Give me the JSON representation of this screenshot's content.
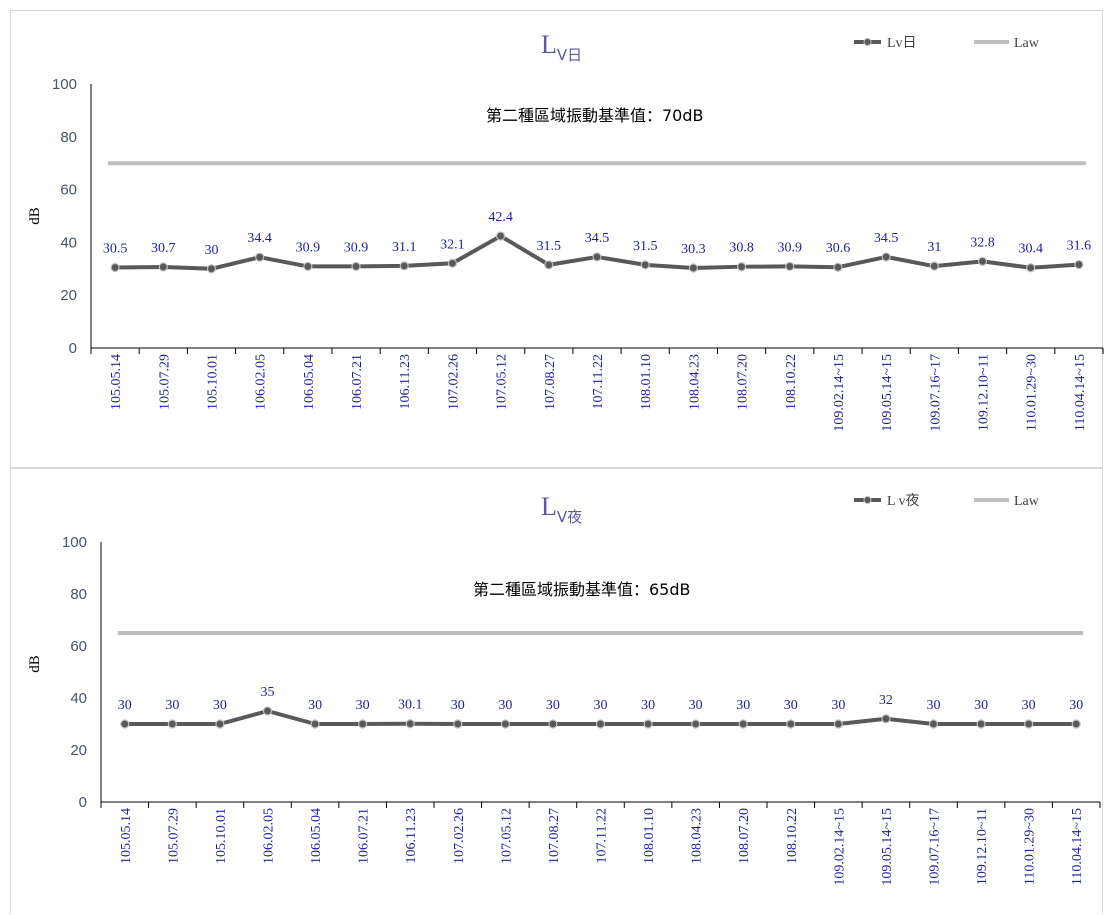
{
  "chart_data": [
    {
      "type": "line",
      "title": "L",
      "title_subscript": "V日",
      "ylabel": "dB",
      "ylim": [
        0,
        100
      ],
      "yticks": [
        0,
        20,
        40,
        60,
        80,
        100
      ],
      "annotation": "第二種區域振動基準值：70dB",
      "legend_position": "top-right",
      "categories": [
        "105.05.14",
        "105.07.29",
        "105.10.01",
        "106.02.05",
        "106.05.04",
        "106.07.21",
        "106.11.23",
        "107.02.26",
        "107.05.12",
        "107.08.27",
        "107.11.22",
        "108.01.10",
        "108.04.23",
        "108.07.20",
        "108.10.22",
        "109.02.14~15",
        "109.05.14~15",
        "109.07.16~17",
        "109.12.10~11",
        "110.01.29~30",
        "110.04.14~15"
      ],
      "series": [
        {
          "name": "Lv日",
          "color": "#595959",
          "values": [
            30.5,
            30.7,
            30,
            34.4,
            30.9,
            30.9,
            31.1,
            32.1,
            42.4,
            31.5,
            34.5,
            31.5,
            30.3,
            30.8,
            30.9,
            30.6,
            34.5,
            31,
            32.8,
            30.4,
            31.6
          ]
        },
        {
          "name": "Law",
          "color": "#bfbfbf",
          "values": [
            70,
            70,
            70,
            70,
            70,
            70,
            70,
            70,
            70,
            70,
            70,
            70,
            70,
            70,
            70,
            70,
            70,
            70,
            70,
            70,
            70
          ]
        }
      ]
    },
    {
      "type": "line",
      "title": "L",
      "title_subscript": "V夜",
      "ylabel": "dB",
      "ylim": [
        0,
        100
      ],
      "yticks": [
        0,
        20,
        40,
        60,
        80,
        100
      ],
      "annotation": "第二種區域振動基準值：65dB",
      "legend_position": "top-right",
      "categories": [
        "105.05.14",
        "105.07.29",
        "105.10.01",
        "106.02.05",
        "106.05.04",
        "106.07.21",
        "106.11.23",
        "107.02.26",
        "107.05.12",
        "107.08.27",
        "107.11.22",
        "108.01.10",
        "108.04.23",
        "108.07.20",
        "108.10.22",
        "109.02.14~15",
        "109.05.14~15",
        "109.07.16~17",
        "109.12.10~11",
        "110.01.29~30",
        "110.04.14~15"
      ],
      "series": [
        {
          "name": "L v夜",
          "color": "#595959",
          "values": [
            30,
            30,
            30,
            35,
            30,
            30,
            30.1,
            30,
            30,
            30,
            30,
            30,
            30,
            30,
            30,
            30,
            32,
            30,
            30,
            30,
            30
          ]
        },
        {
          "name": "Law",
          "color": "#bfbfbf",
          "values": [
            65,
            65,
            65,
            65,
            65,
            65,
            65,
            65,
            65,
            65,
            65,
            65,
            65,
            65,
            65,
            65,
            65,
            65,
            65,
            65,
            65
          ]
        }
      ]
    }
  ]
}
